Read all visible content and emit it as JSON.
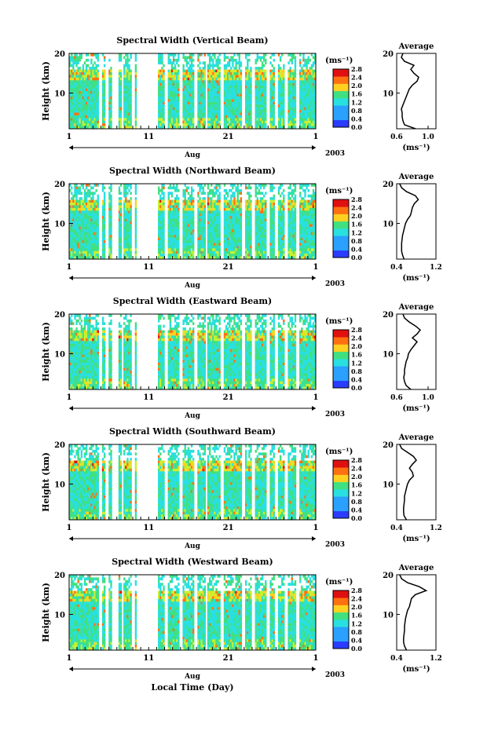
{
  "figure": {
    "xlabel_bottom": "Local Time (Day)",
    "month_label": "Aug",
    "year_label": "2003",
    "ylabel": "Height (km)",
    "cbar_unit": "(ms⁻¹)",
    "avg_title": "Average",
    "avg_unit": "(ms⁻¹)"
  },
  "chart_data": [
    {
      "type": "heatmap",
      "title": "Spectral Width (Vertical Beam)",
      "ylabel": "Height (km)",
      "xticks": [
        "1",
        "11",
        "21",
        "1"
      ],
      "yticks": [
        "10",
        "20"
      ],
      "cbar_ticks": [
        "0.0",
        "0.4",
        "0.8",
        "1.2",
        "1.6",
        "2.0",
        "2.4",
        "2.8"
      ],
      "avg": {
        "xticks": [
          "0.6",
          "1.0"
        ],
        "xlim": [
          0.6,
          1.1
        ],
        "ylim": [
          1,
          20
        ],
        "profile": [
          [
            1,
            0.84
          ],
          [
            2,
            0.7
          ],
          [
            3,
            0.68
          ],
          [
            4,
            0.67
          ],
          [
            5,
            0.67
          ],
          [
            6,
            0.66
          ],
          [
            7,
            0.68
          ],
          [
            8,
            0.7
          ],
          [
            9,
            0.72
          ],
          [
            10,
            0.74
          ],
          [
            11,
            0.76
          ],
          [
            12,
            0.8
          ],
          [
            13,
            0.86
          ],
          [
            14,
            0.88
          ],
          [
            15,
            0.82
          ],
          [
            16,
            0.78
          ],
          [
            17,
            0.82
          ],
          [
            18,
            0.7
          ],
          [
            19,
            0.66
          ],
          [
            20,
            0.68
          ]
        ]
      }
    },
    {
      "type": "heatmap",
      "title": "Spectral Width (Northward Beam)",
      "ylabel": "Height (km)",
      "xticks": [
        "1",
        "11",
        "21",
        "1"
      ],
      "yticks": [
        "10",
        "20"
      ],
      "cbar_ticks": [
        "0.0",
        "0.4",
        "0.8",
        "1.2",
        "1.6",
        "2.0",
        "2.4",
        "2.8"
      ],
      "avg": {
        "xticks": [
          "0.4",
          "1.2"
        ],
        "xlim": [
          0.4,
          1.2
        ],
        "ylim": [
          1,
          20
        ],
        "profile": [
          [
            1,
            0.55
          ],
          [
            2,
            0.52
          ],
          [
            3,
            0.5
          ],
          [
            4,
            0.5
          ],
          [
            5,
            0.5
          ],
          [
            6,
            0.51
          ],
          [
            7,
            0.52
          ],
          [
            8,
            0.54
          ],
          [
            9,
            0.56
          ],
          [
            10,
            0.58
          ],
          [
            11,
            0.62
          ],
          [
            12,
            0.68
          ],
          [
            13,
            0.7
          ],
          [
            14,
            0.72
          ],
          [
            15,
            0.76
          ],
          [
            16,
            0.84
          ],
          [
            17,
            0.78
          ],
          [
            18,
            0.6
          ],
          [
            19,
            0.5
          ],
          [
            20,
            0.46
          ]
        ]
      }
    },
    {
      "type": "heatmap",
      "title": "Spectral Width (Eastward Beam)",
      "ylabel": "Height (km)",
      "xticks": [
        "1",
        "11",
        "21",
        "1"
      ],
      "yticks": [
        "10",
        "20"
      ],
      "cbar_ticks": [
        "0.0",
        "0.4",
        "0.8",
        "1.2",
        "1.6",
        "2.0",
        "2.4",
        "2.8"
      ],
      "avg": {
        "xticks": [
          "0.6",
          "1.0"
        ],
        "xlim": [
          0.6,
          1.1
        ],
        "ylim": [
          1,
          20
        ],
        "profile": [
          [
            1,
            0.78
          ],
          [
            2,
            0.72
          ],
          [
            3,
            0.7
          ],
          [
            4,
            0.69
          ],
          [
            5,
            0.7
          ],
          [
            6,
            0.7
          ],
          [
            7,
            0.71
          ],
          [
            8,
            0.72
          ],
          [
            9,
            0.74
          ],
          [
            10,
            0.75
          ],
          [
            11,
            0.78
          ],
          [
            12,
            0.82
          ],
          [
            13,
            0.86
          ],
          [
            14,
            0.8
          ],
          [
            15,
            0.86
          ],
          [
            16,
            0.9
          ],
          [
            17,
            0.84
          ],
          [
            18,
            0.76
          ],
          [
            19,
            0.7
          ],
          [
            20,
            0.68
          ]
        ]
      }
    },
    {
      "type": "heatmap",
      "title": "Spectral Width (Southward Beam)",
      "ylabel": "Height (km)",
      "xticks": [
        "1",
        "11",
        "21",
        "1"
      ],
      "yticks": [
        "10",
        "20"
      ],
      "cbar_ticks": [
        "0.0",
        "0.4",
        "0.8",
        "1.2",
        "1.6",
        "2.0",
        "2.4",
        "2.8"
      ],
      "avg": {
        "xticks": [
          "0.4",
          "1.2"
        ],
        "xlim": [
          0.4,
          1.2
        ],
        "ylim": [
          1,
          20
        ],
        "profile": [
          [
            1,
            0.6
          ],
          [
            2,
            0.55
          ],
          [
            3,
            0.54
          ],
          [
            4,
            0.54
          ],
          [
            5,
            0.55
          ],
          [
            6,
            0.56
          ],
          [
            7,
            0.56
          ],
          [
            8,
            0.58
          ],
          [
            9,
            0.6
          ],
          [
            10,
            0.62
          ],
          [
            11,
            0.66
          ],
          [
            12,
            0.74
          ],
          [
            13,
            0.72
          ],
          [
            14,
            0.66
          ],
          [
            15,
            0.72
          ],
          [
            16,
            0.8
          ],
          [
            17,
            0.74
          ],
          [
            18,
            0.62
          ],
          [
            19,
            0.5
          ],
          [
            20,
            0.46
          ]
        ]
      }
    },
    {
      "type": "heatmap",
      "title": "Spectral Width (Westward Beam)",
      "ylabel": "Height (km)",
      "xticks": [
        "1",
        "11",
        "21",
        "1"
      ],
      "yticks": [
        "10",
        "20"
      ],
      "cbar_ticks": [
        "0.0",
        "0.4",
        "0.8",
        "1.2",
        "1.6",
        "2.0",
        "2.4",
        "2.8"
      ],
      "avg": {
        "xticks": [
          "0.4",
          "1.2"
        ],
        "xlim": [
          0.4,
          1.2
        ],
        "ylim": [
          1,
          20
        ],
        "profile": [
          [
            1,
            0.6
          ],
          [
            2,
            0.56
          ],
          [
            3,
            0.54
          ],
          [
            4,
            0.54
          ],
          [
            5,
            0.55
          ],
          [
            6,
            0.56
          ],
          [
            7,
            0.56
          ],
          [
            8,
            0.57
          ],
          [
            9,
            0.58
          ],
          [
            10,
            0.6
          ],
          [
            11,
            0.62
          ],
          [
            12,
            0.66
          ],
          [
            13,
            0.68
          ],
          [
            14,
            0.7
          ],
          [
            15,
            0.78
          ],
          [
            16,
            1.0
          ],
          [
            17,
            0.86
          ],
          [
            18,
            0.62
          ],
          [
            19,
            0.5
          ],
          [
            20,
            0.46
          ]
        ]
      }
    }
  ]
}
